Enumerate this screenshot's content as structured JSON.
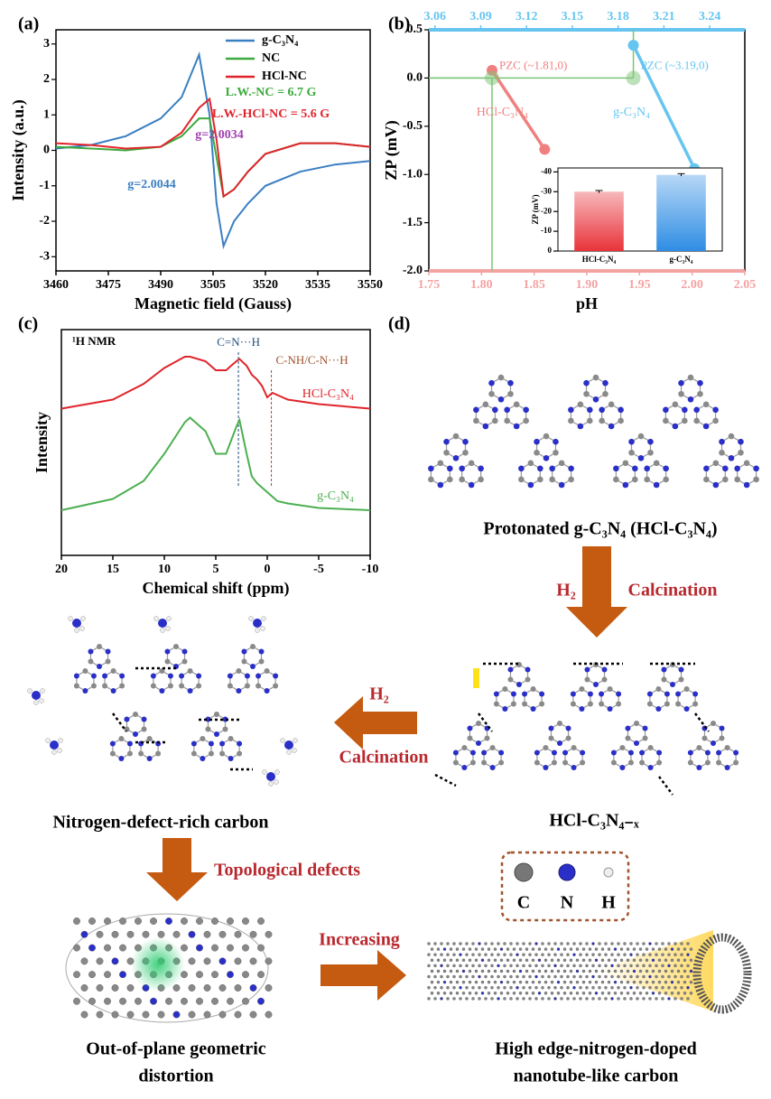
{
  "chart_data": [
    {
      "panel": "(a)",
      "type": "line",
      "xlabel": "Magnetic field (Gauss)",
      "ylabel": "Intensity (a.u.)",
      "x": [
        3460,
        3470,
        3480,
        3490,
        3496,
        3501,
        3504,
        3506,
        3508,
        3511,
        3515,
        3520,
        3530,
        3540,
        3550
      ],
      "series": [
        {
          "name": "g-C₃N₄",
          "color": "#3a7fc1",
          "values": [
            0.05,
            0.15,
            0.4,
            0.9,
            1.5,
            2.7,
            1.0,
            -1.5,
            -2.7,
            -2.0,
            -1.5,
            -1.0,
            -0.6,
            -0.4,
            -0.3
          ]
        },
        {
          "name": "NC",
          "color": "#3caa3c",
          "values": [
            0.1,
            0.05,
            0.0,
            0.1,
            0.4,
            0.9,
            0.9,
            -0.2,
            -1.3,
            -1.1,
            -0.6,
            -0.1,
            0.2,
            0.2,
            0.1
          ]
        },
        {
          "name": "HCl-NC",
          "color": "#e0242b",
          "values": [
            0.2,
            0.15,
            0.05,
            0.1,
            0.5,
            1.2,
            1.45,
            0.3,
            -1.3,
            -1.1,
            -0.6,
            -0.1,
            0.2,
            0.2,
            0.1
          ]
        }
      ],
      "xlim": [
        3460,
        3550
      ],
      "ylim": [
        -3.4,
        3.4
      ],
      "xticks": [
        3460,
        3475,
        3490,
        3505,
        3520,
        3535,
        3550
      ],
      "yticks": [
        -3,
        -2,
        -1,
        0,
        1,
        2,
        3
      ],
      "legend": "upper right",
      "annotations": [
        {
          "text": "L.W.-NC = 6.7 G",
          "color": "#3caa3c"
        },
        {
          "text": "L.W.-HCl-NC = 5.6 G",
          "color": "#e0242b"
        },
        {
          "text": "g=2.0034",
          "color": "#a040b0"
        },
        {
          "text": "g=2.0044",
          "color": "#3a7fc1"
        }
      ]
    },
    {
      "panel": "(b)",
      "type": "line",
      "xlabel": "pH",
      "ylabel": "ZP (mV)",
      "xlim": [
        1.75,
        2.05
      ],
      "x2lim": [
        3.056,
        3.263
      ],
      "ylim": [
        -2,
        0.5
      ],
      "xticks": [
        1.75,
        {
          "value": 1.8,
          "label": "1.80"
        },
        1.85,
        {
          "value": 1.9,
          "label": "1.90"
        },
        1.95,
        {
          "value": 2,
          "label": "2.00"
        },
        2.05
      ],
      "x2ticks": [
        3.06,
        3.09,
        3.12,
        3.15,
        3.18,
        3.21,
        3.24
      ],
      "yticks": [
        {
          "value": -2,
          "label": "-2.0"
        },
        -1.5,
        {
          "value": -1,
          "label": "-1.0"
        },
        -0.5,
        {
          "value": 0,
          "label": "0.0"
        },
        0.5
      ],
      "x_color": "#f4a3a3",
      "x2_color": "#66c5f0",
      "markers": true,
      "series": [
        {
          "name": "HCl-C₃N₄",
          "color": "#f08080",
          "x": [
            1.81,
            1.86
          ],
          "values": [
            0.08,
            -0.74
          ]
        },
        {
          "name": "g-C₃N₄",
          "color": "#66c5f0",
          "axis": "x2",
          "x": [
            3.19,
            3.23
          ],
          "values": [
            0.34,
            -0.94
          ]
        }
      ],
      "pzc": [
        {
          "label": "PZC (~1.81,0)",
          "x": 1.81,
          "y": 0,
          "color": "#f08080"
        },
        {
          "label": "PZC (~3.19,0)",
          "x": 3.19,
          "y": 0,
          "axis": "x2",
          "color": "#66c5f0"
        }
      ],
      "guide_color": "#7cc576"
    },
    {
      "type": "bar",
      "ylabel": "ZP (mV)",
      "categories": [
        "HCl-C₃N₄",
        "g-C₃N₄"
      ],
      "values": [
        -30,
        -38.5
      ],
      "errors": [
        0.6,
        0.6
      ],
      "colors": [
        "#e8333a",
        "#2f8de4"
      ],
      "ylim": [
        0,
        -42
      ],
      "yticks": [
        0,
        -10,
        -20,
        -30,
        -40
      ]
    },
    {
      "panel": "(c)",
      "type": "line",
      "xlabel": "Chemical shift (ppm)",
      "ylabel": "Intensity",
      "annotation": "¹H NMR",
      "x": [
        20,
        15,
        12,
        10,
        8,
        7.5,
        6,
        5,
        4,
        3,
        2.7,
        2,
        1.5,
        1,
        0.5,
        0,
        -0.5,
        -1,
        -2,
        -5,
        -10
      ],
      "series": [
        {
          "name": "HCl-C₃N₄",
          "color": "#e0242b",
          "values": [
            6.5,
            6.9,
            7.6,
            8.3,
            8.8,
            8.8,
            8.6,
            8.2,
            8.2,
            8.6,
            8.7,
            8.4,
            8.0,
            7.8,
            7.5,
            7.0,
            7.2,
            7.1,
            6.9,
            6.7,
            6.5
          ]
        },
        {
          "name": "g-C₃N₄",
          "color": "#4caf50",
          "values": [
            2.0,
            2.5,
            3.3,
            4.5,
            5.9,
            6.1,
            5.5,
            4.5,
            4.5,
            5.7,
            6.0,
            4.5,
            3.5,
            3.2,
            3.0,
            2.8,
            2.6,
            2.4,
            2.3,
            2.1,
            2.0
          ]
        }
      ],
      "xlim": [
        20,
        -10
      ],
      "ylim": [
        0,
        10
      ],
      "xticks": [
        20,
        15,
        10,
        5,
        0,
        -5,
        -10
      ],
      "ref_lines": [
        {
          "x": 2.8,
          "label": "C=N···H",
          "color": "#1f4e79"
        },
        {
          "x": -0.4,
          "label": "C-NH/C-N···H",
          "color": "#a0522d"
        }
      ]
    }
  ],
  "diagram": {
    "panel": "(d)",
    "protonated": "Protonated g-C₃N₄ (HCl-C₃N₄)",
    "step1": {
      "gas": "H₂",
      "process": "Calcination"
    },
    "intermediate": "HCl-C₃N₄₋ₓ",
    "step2": {
      "gas": "H₂",
      "process": "Calcination"
    },
    "defect_carbon": "Nitrogen-defect-rich carbon",
    "step3": "Topological defects",
    "distortion": [
      "Out-of-plane geometric",
      "distortion"
    ],
    "step4": "Increasing",
    "nanotube": [
      "High edge-nitrogen-doped",
      "nanotube-like carbon"
    ],
    "atom_legend": [
      "C",
      "N",
      "H"
    ]
  }
}
